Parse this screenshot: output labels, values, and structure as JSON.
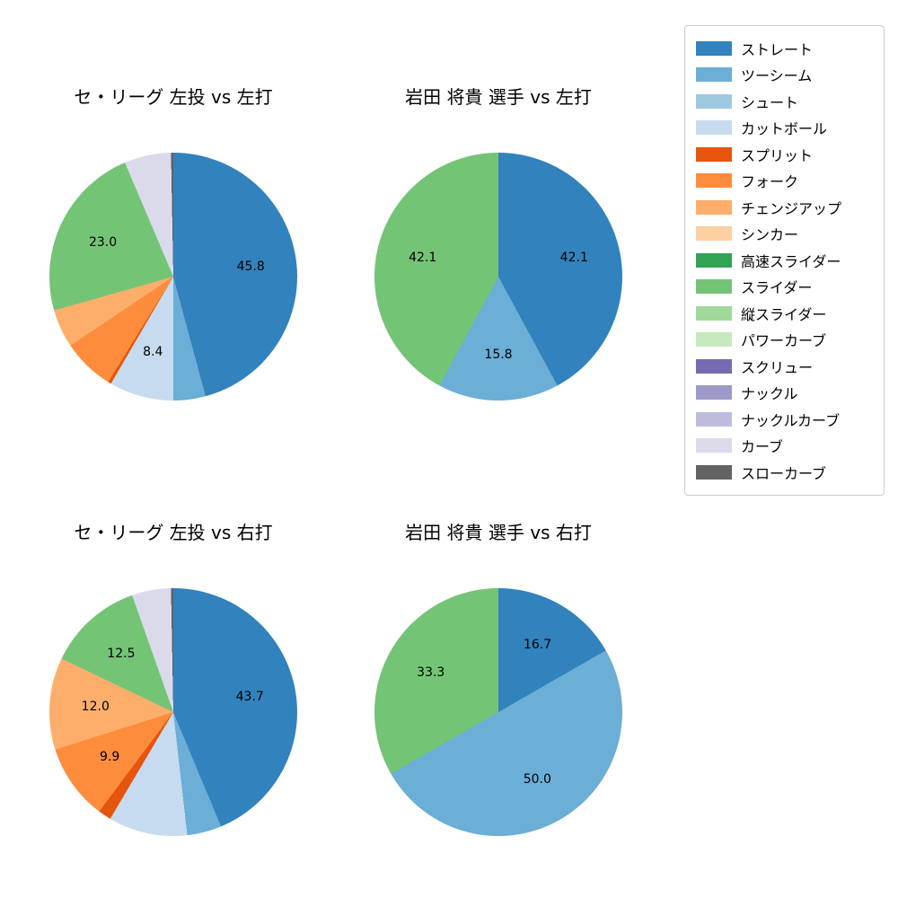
{
  "palette": {
    "ストレート": "#3182bd",
    "ツーシーム": "#6baed6",
    "シュート": "#9ecae1",
    "カットボール": "#c6dbef",
    "スプリット": "#e6550d",
    "フォーク": "#fd8d3c",
    "チェンジアップ": "#fdae6b",
    "シンカー": "#fdd0a2",
    "高速スライダー": "#31a354",
    "スライダー": "#74c476",
    "縦スライダー": "#a1d99b",
    "パワーカーブ": "#c7e9c0",
    "スクリュー": "#756bb1",
    "ナックル": "#9e9ac8",
    "ナックルカーブ": "#bcbddc",
    "カーブ": "#dadaeb",
    "スローカーブ": "#636363"
  },
  "legend": {
    "items": [
      "ストレート",
      "ツーシーム",
      "シュート",
      "カットボール",
      "スプリット",
      "フォーク",
      "チェンジアップ",
      "シンカー",
      "高速スライダー",
      "スライダー",
      "縦スライダー",
      "パワーカーブ",
      "スクリュー",
      "ナックル",
      "ナックルカーブ",
      "カーブ",
      "スローカーブ"
    ]
  },
  "chart_data": [
    {
      "type": "pie",
      "title": "セ・リーグ 左投 vs 左打",
      "start_angle": "top",
      "direction": "clockwise",
      "unit": "percent",
      "slices": [
        {
          "name": "ストレート",
          "value": 45.8,
          "label": "45.8"
        },
        {
          "name": "ツーシーム",
          "value": 4.2,
          "label": ""
        },
        {
          "name": "カットボール",
          "value": 8.4,
          "label": "8.4"
        },
        {
          "name": "スプリット",
          "value": 0.4,
          "label": ""
        },
        {
          "name": "フォーク",
          "value": 6.8,
          "label": ""
        },
        {
          "name": "チェンジアップ",
          "value": 5.0,
          "label": ""
        },
        {
          "name": "スライダー",
          "value": 23.0,
          "label": "23.0"
        },
        {
          "name": "カーブ",
          "value": 6.1,
          "label": ""
        },
        {
          "name": "スローカーブ",
          "value": 0.3,
          "label": ""
        }
      ]
    },
    {
      "type": "pie",
      "title": "岩田 将貴 選手 vs 左打",
      "start_angle": "top",
      "direction": "clockwise",
      "unit": "percent",
      "slices": [
        {
          "name": "ストレート",
          "value": 42.1,
          "label": "42.1"
        },
        {
          "name": "ツーシーム",
          "value": 15.8,
          "label": "15.8"
        },
        {
          "name": "スライダー",
          "value": 42.1,
          "label": "42.1"
        }
      ]
    },
    {
      "type": "pie",
      "title": "セ・リーグ 左投 vs 右打",
      "start_angle": "top",
      "direction": "clockwise",
      "unit": "percent",
      "slices": [
        {
          "name": "ストレート",
          "value": 43.7,
          "label": "43.7"
        },
        {
          "name": "ツーシーム",
          "value": 4.5,
          "label": ""
        },
        {
          "name": "カットボール",
          "value": 10.3,
          "label": ""
        },
        {
          "name": "スプリット",
          "value": 1.7,
          "label": ""
        },
        {
          "name": "フォーク",
          "value": 9.9,
          "label": "9.9"
        },
        {
          "name": "チェンジアップ",
          "value": 12.0,
          "label": "12.0"
        },
        {
          "name": "スライダー",
          "value": 12.5,
          "label": "12.5"
        },
        {
          "name": "カーブ",
          "value": 5.1,
          "label": ""
        },
        {
          "name": "スローカーブ",
          "value": 0.3,
          "label": ""
        }
      ]
    },
    {
      "type": "pie",
      "title": "岩田 将貴 選手 vs 右打",
      "start_angle": "top",
      "direction": "clockwise",
      "unit": "percent",
      "slices": [
        {
          "name": "ストレート",
          "value": 16.7,
          "label": "16.7"
        },
        {
          "name": "ツーシーム",
          "value": 50.0,
          "label": "50.0"
        },
        {
          "name": "スライダー",
          "value": 33.3,
          "label": "33.3"
        }
      ]
    }
  ]
}
